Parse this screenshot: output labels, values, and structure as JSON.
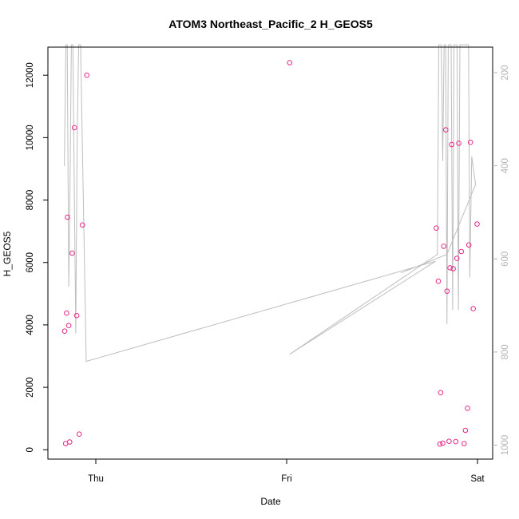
{
  "chart_data": {
    "type": "scatter",
    "title": "ATOM3 Northeast_Pacific_2 H_GEOS5",
    "xlabel": "Date",
    "ylabel": "H_GEOS5",
    "x_ticks": [
      "Thu",
      "Fri",
      "Sat"
    ],
    "x_range_days": [
      -0.2,
      1.02
    ],
    "y_ticks": [
      0,
      2000,
      4000,
      6000,
      8000,
      10000,
      12000
    ],
    "ylim": [
      -300,
      12900
    ],
    "y2_ticks": [
      200,
      400,
      600,
      800,
      1000
    ],
    "y2lim": [
      1030,
      145
    ],
    "y2_reversed": true,
    "colors": {
      "points": "#e7298a",
      "line": "#bebebe",
      "axis": "#000000",
      "axis_right": "#b4b4b4"
    },
    "points": [
      {
        "x": -0.163,
        "y": 3800
      },
      {
        "x": -0.158,
        "y": 200
      },
      {
        "x": -0.153,
        "y": 4380
      },
      {
        "x": -0.148,
        "y": 7450
      },
      {
        "x": -0.142,
        "y": 3980
      },
      {
        "x": -0.137,
        "y": 250
      },
      {
        "x": -0.124,
        "y": 6300
      },
      {
        "x": -0.112,
        "y": 10320
      },
      {
        "x": -0.1,
        "y": 4300
      },
      {
        "x": -0.087,
        "y": 500
      },
      {
        "x": -0.07,
        "y": 7200
      },
      {
        "x": -0.047,
        "y": 12000
      },
      {
        "x": 1.016,
        "y": 12400
      },
      {
        "x": 1.784,
        "y": 7100
      },
      {
        "x": 1.795,
        "y": 5400
      },
      {
        "x": 1.803,
        "y": 180
      },
      {
        "x": 1.807,
        "y": 1830
      },
      {
        "x": 1.818,
        "y": 210
      },
      {
        "x": 1.823,
        "y": 6520
      },
      {
        "x": 1.834,
        "y": 10250
      },
      {
        "x": 1.84,
        "y": 5080
      },
      {
        "x": 1.851,
        "y": 270
      },
      {
        "x": 1.856,
        "y": 5830
      },
      {
        "x": 1.865,
        "y": 9780
      },
      {
        "x": 1.873,
        "y": 5800
      },
      {
        "x": 1.886,
        "y": 260
      },
      {
        "x": 1.892,
        "y": 6130
      },
      {
        "x": 1.902,
        "y": 9820
      },
      {
        "x": 1.915,
        "y": 6350
      },
      {
        "x": 1.93,
        "y": 200
      },
      {
        "x": 1.937,
        "y": 620
      },
      {
        "x": 1.948,
        "y": 1330
      },
      {
        "x": 1.955,
        "y": 6560
      },
      {
        "x": 1.963,
        "y": 9850
      },
      {
        "x": 1.978,
        "y": 4520
      },
      {
        "x": 1.998,
        "y": 7230
      }
    ],
    "line_series_y2": [
      {
        "x": -0.165,
        "y": 400
      },
      {
        "x": -0.157,
        "y": 140
      },
      {
        "x": -0.15,
        "y": 140
      },
      {
        "x": -0.142,
        "y": 660
      },
      {
        "x": -0.135,
        "y": 440
      },
      {
        "x": -0.128,
        "y": 140
      },
      {
        "x": -0.12,
        "y": 140
      },
      {
        "x": -0.113,
        "y": 440
      },
      {
        "x": -0.105,
        "y": 760
      },
      {
        "x": -0.098,
        "y": 350
      },
      {
        "x": -0.09,
        "y": 140
      },
      {
        "x": -0.08,
        "y": 140
      },
      {
        "x": -0.05,
        "y": 820
      },
      {
        "x": 1.78,
        "y": 605
      },
      {
        "x": 1.015,
        "y": 805
      },
      {
        "x": 1.79,
        "y": 590
      },
      {
        "x": 1.797,
        "y": 140
      },
      {
        "x": 1.803,
        "y": 140
      },
      {
        "x": 1.81,
        "y": 140
      },
      {
        "x": 1.818,
        "y": 390
      },
      {
        "x": 1.825,
        "y": 140
      },
      {
        "x": 1.833,
        "y": 140
      },
      {
        "x": 1.84,
        "y": 740
      },
      {
        "x": 1.847,
        "y": 140
      },
      {
        "x": 1.853,
        "y": 140
      },
      {
        "x": 1.862,
        "y": 140
      },
      {
        "x": 1.87,
        "y": 710
      },
      {
        "x": 1.877,
        "y": 140
      },
      {
        "x": 1.885,
        "y": 140
      },
      {
        "x": 1.893,
        "y": 140
      },
      {
        "x": 1.9,
        "y": 710
      },
      {
        "x": 1.908,
        "y": 140
      },
      {
        "x": 1.915,
        "y": 140
      },
      {
        "x": 1.923,
        "y": 140
      },
      {
        "x": 1.93,
        "y": 140
      },
      {
        "x": 1.937,
        "y": 140
      },
      {
        "x": 1.945,
        "y": 140
      },
      {
        "x": 1.953,
        "y": 140
      },
      {
        "x": 1.96,
        "y": 640
      },
      {
        "x": 1.97,
        "y": 380
      },
      {
        "x": 1.99,
        "y": 440
      },
      {
        "x": 1.84,
        "y": 590
      },
      {
        "x": 1.6,
        "y": 630
      }
    ]
  }
}
